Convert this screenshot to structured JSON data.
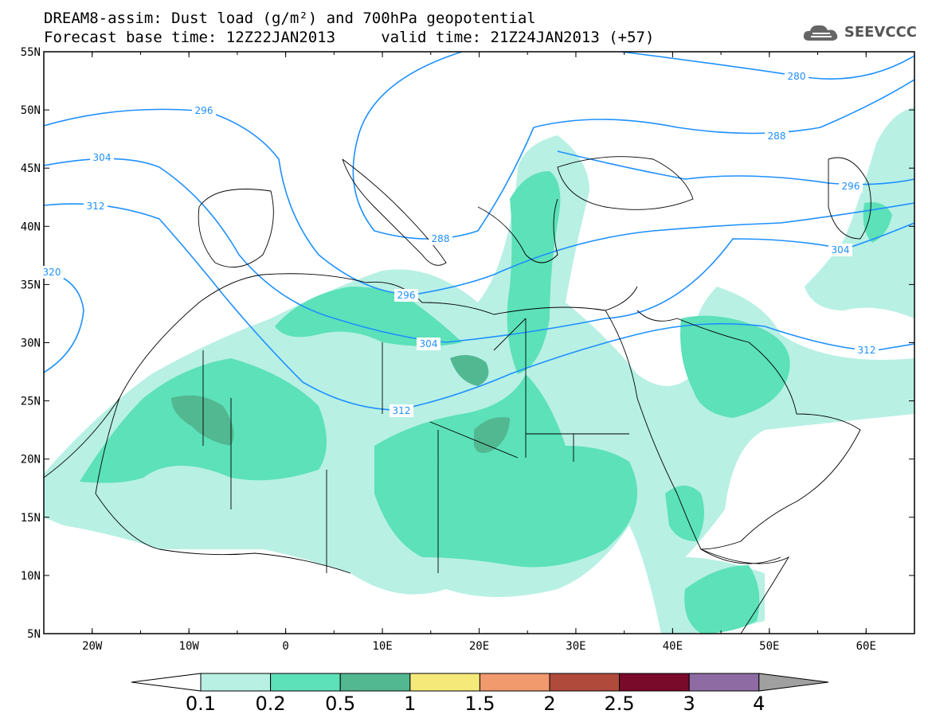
{
  "title": {
    "line1": "DREAM8-assim: Dust load (g/m²) and 700hPa geopotential",
    "line2": "Forecast base time: 12Z22JAN2013     valid time: 21Z24JAN2013 (+57)"
  },
  "logo": {
    "text": "SEEVCCC",
    "icon": "cloud-icon"
  },
  "map": {
    "lon_range": [
      -25,
      65
    ],
    "lat_range": [
      5,
      55
    ],
    "lon_ticks": [
      "20W",
      "10W",
      "0",
      "10E",
      "20E",
      "30E",
      "40E",
      "50E",
      "60E"
    ],
    "lat_ticks": [
      "55N",
      "50N",
      "45N",
      "40N",
      "35N",
      "30N",
      "25N",
      "20N",
      "15N",
      "10N",
      "5N"
    ],
    "geopotential_contours": [
      "280",
      "288",
      "288",
      "296",
      "296",
      "296",
      "304",
      "304",
      "304",
      "312",
      "312",
      "312",
      "320"
    ]
  },
  "colorbar": {
    "labels": [
      "0.1",
      "0.2",
      "0.5",
      "1",
      "1.5",
      "2",
      "2.5",
      "3",
      "4"
    ],
    "colors": [
      "#b8f0e4",
      "#5ce1b8",
      "#52b892",
      "#f5e97a",
      "#f09a6e",
      "#b04a3a",
      "#7a0a2a",
      "#8e6ba3"
    ],
    "left_triangle_color": "#ffffff",
    "right_triangle_color": "#a0a0a0"
  },
  "colors": {
    "dust_light": "#b8f0e4",
    "dust_medium": "#5ce1b8",
    "dust_dark": "#52b892",
    "contour": "#1e90ff",
    "coast": "#000000"
  }
}
